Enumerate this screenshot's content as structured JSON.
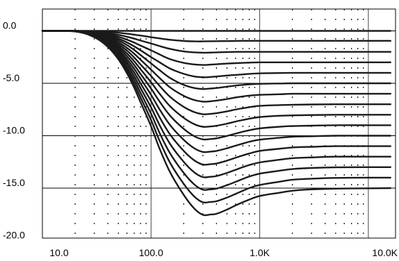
{
  "chart_data": {
    "type": "line",
    "title": "",
    "xlabel": "",
    "ylabel": "",
    "x_scale": "log",
    "xlim": [
      10,
      10000
    ],
    "ylim": [
      -20,
      2
    ],
    "grid": true,
    "x_ticks": [
      {
        "value": 10,
        "label": "10.0"
      },
      {
        "value": 100,
        "label": "100.0"
      },
      {
        "value": 1000,
        "label": "1.0K"
      },
      {
        "value": 10000,
        "label": "10.0K"
      }
    ],
    "y_ticks": [
      {
        "value": 0,
        "label": "0.0"
      },
      {
        "value": -5,
        "label": "-5.0"
      },
      {
        "value": -10,
        "label": "-10.0"
      },
      {
        "value": -15,
        "label": "-15.0"
      },
      {
        "value": -20,
        "label": "-20.0"
      }
    ],
    "x": [
      10,
      20,
      30,
      40,
      50,
      60,
      70,
      80,
      100,
      120,
      150,
      200,
      250,
      300,
      350,
      400,
      500,
      600,
      700,
      800,
      1000,
      1500,
      2000,
      3000,
      5000,
      10000,
      16000
    ],
    "series": [
      {
        "values": [
          0,
          0,
          0,
          0,
          0,
          0,
          0,
          0,
          0,
          0,
          0,
          0,
          0,
          0,
          0,
          0,
          0,
          0,
          0,
          0,
          0,
          0,
          0,
          0,
          0,
          0,
          0
        ]
      },
      {
        "values": [
          0,
          0,
          -0.05,
          -0.1,
          -0.18,
          -0.27,
          -0.36,
          -0.44,
          -0.6,
          -0.72,
          -0.85,
          -0.96,
          -1,
          -1,
          -0.99,
          -0.98,
          -0.97,
          -0.96,
          -0.95,
          -0.95,
          -0.95,
          -0.95,
          -0.95,
          -0.95,
          -0.95,
          -0.95,
          -0.95
        ]
      },
      {
        "values": [
          0,
          0,
          -0.08,
          -0.22,
          -0.38,
          -0.56,
          -0.74,
          -0.92,
          -1.2,
          -1.45,
          -1.72,
          -1.96,
          -2.05,
          -2.08,
          -2.07,
          -2.05,
          -2.02,
          -2,
          -2,
          -2,
          -2,
          -2,
          -2,
          -2,
          -2,
          -2,
          -2
        ]
      },
      {
        "values": [
          0,
          0,
          -0.12,
          -0.32,
          -0.56,
          -0.84,
          -1.12,
          -1.4,
          -1.85,
          -2.25,
          -2.7,
          -3.05,
          -3.2,
          -3.25,
          -3.22,
          -3.18,
          -3.12,
          -3.08,
          -3.05,
          -3.03,
          -3,
          -3,
          -3,
          -3,
          -3,
          -3,
          -3
        ]
      },
      {
        "values": [
          0,
          -0.02,
          -0.16,
          -0.42,
          -0.74,
          -1.1,
          -1.48,
          -1.85,
          -2.5,
          -3,
          -3.6,
          -4.1,
          -4.35,
          -4.42,
          -4.4,
          -4.35,
          -4.26,
          -4.2,
          -4.15,
          -4.1,
          -4.05,
          -4.02,
          -4,
          -4,
          -4,
          -4,
          -4
        ]
      },
      {
        "values": [
          0,
          -0.02,
          -0.2,
          -0.52,
          -0.9,
          -1.35,
          -1.82,
          -2.3,
          -3.1,
          -3.75,
          -4.5,
          -5.15,
          -5.45,
          -5.55,
          -5.5,
          -5.45,
          -5.32,
          -5.22,
          -5.15,
          -5.1,
          -5.05,
          -5.02,
          -5,
          -5,
          -5,
          -5,
          -5
        ]
      },
      {
        "values": [
          0,
          -0.02,
          -0.24,
          -0.62,
          -1.08,
          -1.62,
          -2.18,
          -2.75,
          -3.7,
          -4.5,
          -5.4,
          -6.2,
          -6.6,
          -6.75,
          -6.72,
          -6.65,
          -6.5,
          -6.35,
          -6.25,
          -6.18,
          -6.1,
          -6.05,
          -6,
          -6,
          -6,
          -6,
          -6
        ]
      },
      {
        "values": [
          0,
          -0.02,
          -0.28,
          -0.72,
          -1.26,
          -1.88,
          -2.54,
          -3.2,
          -4.3,
          -5.25,
          -6.3,
          -7.25,
          -7.75,
          -7.95,
          -7.92,
          -7.85,
          -7.68,
          -7.5,
          -7.38,
          -7.28,
          -7.15,
          -7.08,
          -7.05,
          -7.02,
          -7,
          -7,
          -7
        ]
      },
      {
        "values": [
          0,
          -0.03,
          -0.32,
          -0.82,
          -1.44,
          -2.15,
          -2.9,
          -3.65,
          -4.9,
          -6,
          -7.2,
          -8.3,
          -8.9,
          -9.15,
          -9.12,
          -9.05,
          -8.85,
          -8.65,
          -8.5,
          -8.38,
          -8.22,
          -8.1,
          -8.06,
          -8.03,
          -8,
          -8,
          -8
        ]
      },
      {
        "values": [
          0,
          -0.03,
          -0.36,
          -0.92,
          -1.62,
          -2.42,
          -3.26,
          -4.1,
          -5.5,
          -6.75,
          -8.1,
          -9.35,
          -10.05,
          -10.35,
          -10.32,
          -10.25,
          -10.02,
          -9.8,
          -9.62,
          -9.48,
          -9.3,
          -9.15,
          -9.08,
          -9.04,
          -9,
          -9,
          -9
        ]
      },
      {
        "values": [
          0,
          -0.03,
          -0.4,
          -1.02,
          -1.8,
          -2.7,
          -3.62,
          -4.55,
          -6.1,
          -7.5,
          -9,
          -10.4,
          -11.2,
          -11.55,
          -11.52,
          -11.45,
          -11.2,
          -10.95,
          -10.75,
          -10.58,
          -10.38,
          -10.2,
          -10.1,
          -10.05,
          -10,
          -10,
          -10
        ]
      },
      {
        "values": [
          0,
          -0.04,
          -0.44,
          -1.12,
          -1.98,
          -2.96,
          -3.98,
          -5,
          -6.7,
          -8.25,
          -9.9,
          -11.45,
          -12.35,
          -12.75,
          -12.72,
          -12.65,
          -12.38,
          -12.1,
          -11.88,
          -11.7,
          -11.45,
          -11.25,
          -11.12,
          -11.06,
          -11,
          -11,
          -11
        ]
      },
      {
        "values": [
          0,
          -0.04,
          -0.48,
          -1.22,
          -2.16,
          -3.22,
          -4.34,
          -5.45,
          -7.3,
          -9,
          -10.8,
          -12.5,
          -13.5,
          -13.95,
          -13.92,
          -13.85,
          -13.55,
          -13.25,
          -13,
          -12.8,
          -12.55,
          -12.3,
          -12.15,
          -12.07,
          -12,
          -12,
          -12
        ]
      },
      {
        "values": [
          0,
          -0.04,
          -0.52,
          -1.32,
          -2.34,
          -3.5,
          -4.7,
          -5.9,
          -7.9,
          -9.75,
          -11.7,
          -13.55,
          -14.65,
          -15.15,
          -15.12,
          -15.05,
          -14.72,
          -14.4,
          -14.12,
          -13.9,
          -13.62,
          -13.35,
          -13.18,
          -13.08,
          -13.02,
          -13,
          -13
        ]
      },
      {
        "values": [
          0,
          -0.05,
          -0.56,
          -1.42,
          -2.52,
          -3.76,
          -5.06,
          -6.35,
          -8.5,
          -10.5,
          -12.6,
          -14.6,
          -15.8,
          -16.35,
          -16.32,
          -16.25,
          -15.9,
          -15.55,
          -15.25,
          -15,
          -14.7,
          -14.4,
          -14.2,
          -14.1,
          -14.03,
          -14,
          -14
        ]
      },
      {
        "values": [
          0,
          -0.05,
          -0.6,
          -1.52,
          -2.7,
          -4.04,
          -5.42,
          -6.8,
          -9.1,
          -11.25,
          -13.5,
          -15.65,
          -16.95,
          -17.55,
          -17.52,
          -17.45,
          -17.05,
          -16.65,
          -16.35,
          -16.1,
          -15.75,
          -15.45,
          -15.25,
          -15.12,
          -15.05,
          -15.02,
          -15
        ]
      }
    ]
  }
}
